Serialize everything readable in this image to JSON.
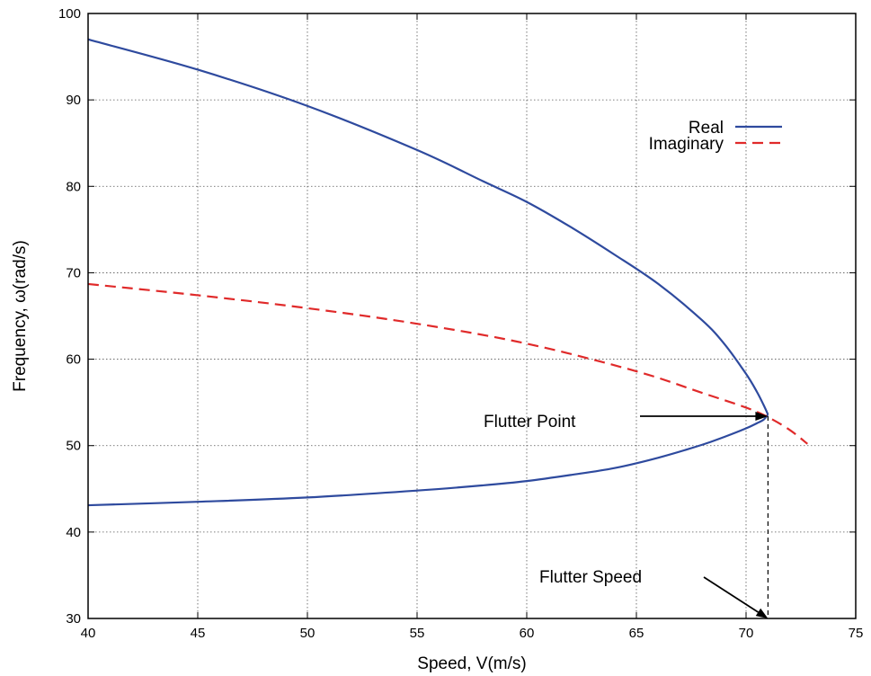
{
  "chart_data": {
    "type": "line",
    "xlabel": "Speed, V(m/s)",
    "ylabel": "Frequency, ω(rad/s)",
    "xlim": [
      40,
      75
    ],
    "ylim": [
      30,
      100
    ],
    "xticks": [
      40,
      45,
      50,
      55,
      60,
      65,
      70,
      75
    ],
    "yticks": [
      30,
      40,
      50,
      60,
      70,
      80,
      90,
      100
    ],
    "grid": true,
    "legend_position": "top-right",
    "colors": {
      "real": "#2e4a9e",
      "imaginary": "#e02a2a",
      "axes": "#000000",
      "grid": "#555555"
    },
    "series": [
      {
        "name": "Real",
        "style": "solid",
        "x": [
          40,
          45,
          50,
          55,
          58,
          60,
          62,
          64,
          66,
          68,
          69,
          70,
          70.5,
          70.8,
          71
        ],
        "y": [
          97,
          93.5,
          89.3,
          84.2,
          80.6,
          78.2,
          75.3,
          72.1,
          68.7,
          64.5,
          61.8,
          58.3,
          56.2,
          54.7,
          53.6
        ]
      },
      {
        "name": "",
        "style": "solid",
        "x": [
          40,
          45,
          50,
          55,
          58,
          60,
          62,
          64,
          66,
          68,
          69,
          70,
          70.5,
          70.8,
          71
        ],
        "y": [
          43.1,
          43.5,
          44.0,
          44.8,
          45.4,
          45.9,
          46.6,
          47.4,
          48.6,
          50.1,
          51.0,
          52.0,
          52.6,
          53.0,
          53.6
        ]
      },
      {
        "name": "Imaginary",
        "style": "dashed",
        "x": [
          40,
          45,
          50,
          55,
          60,
          65,
          68,
          70,
          71,
          72,
          72.8
        ],
        "y": [
          68.7,
          67.4,
          65.9,
          64.1,
          61.8,
          58.6,
          56.1,
          54.4,
          53.3,
          51.8,
          50.2
        ]
      }
    ],
    "annotations": [
      {
        "text": "Flutter Point",
        "x": 71,
        "y": 53.4
      },
      {
        "text": "Flutter Speed",
        "x": 71,
        "y": 30
      }
    ]
  }
}
